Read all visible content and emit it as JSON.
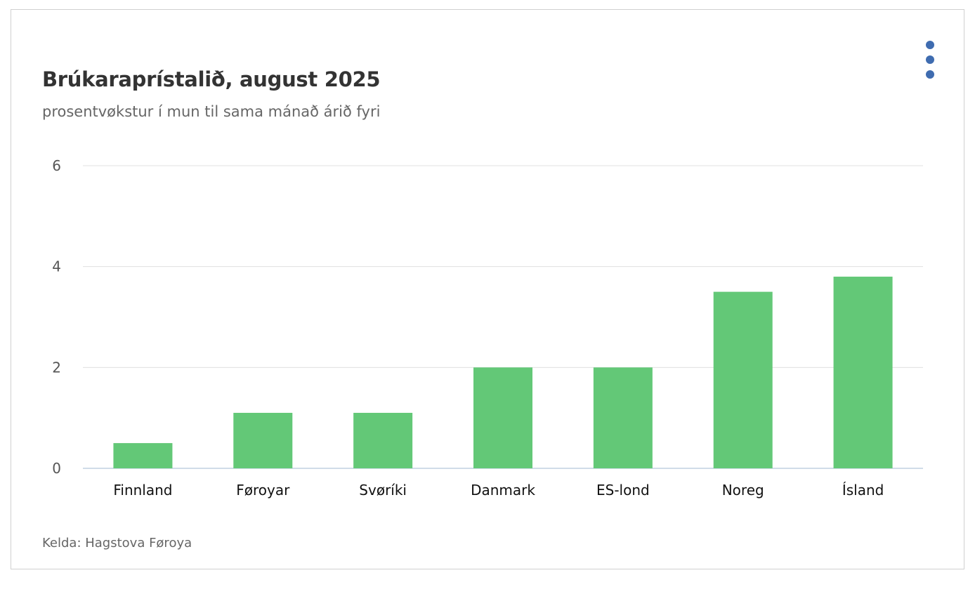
{
  "title": "Brúkaraprístalið, august 2025",
  "subtitle": "prosentvøkstur í mun til sama mánað árið fyri",
  "credits": "Kelda: Hagstova Føroya",
  "menu_icon": "vertical-ellipsis-icon",
  "colors": {
    "bar": "#63c877",
    "grid": "#e0e0e0",
    "axis": "#c0d0e0",
    "menu": "#3f6cb0"
  },
  "chart_data": {
    "type": "bar",
    "title": "Brúkaraprístalið, august 2025",
    "subtitle": "prosentvøkstur í mun til sama mánað árið fyri",
    "categories": [
      "Finnland",
      "Føroyar",
      "Svøríki",
      "Danmark",
      "ES-lond",
      "Noreg",
      "Ísland"
    ],
    "values": [
      0.5,
      1.1,
      1.1,
      2.0,
      2.0,
      3.5,
      3.8
    ],
    "ylim": [
      0,
      6
    ],
    "yticks": [
      0,
      2,
      4,
      6
    ],
    "xlabel": "",
    "ylabel": "",
    "grid": true,
    "legend": "none"
  }
}
